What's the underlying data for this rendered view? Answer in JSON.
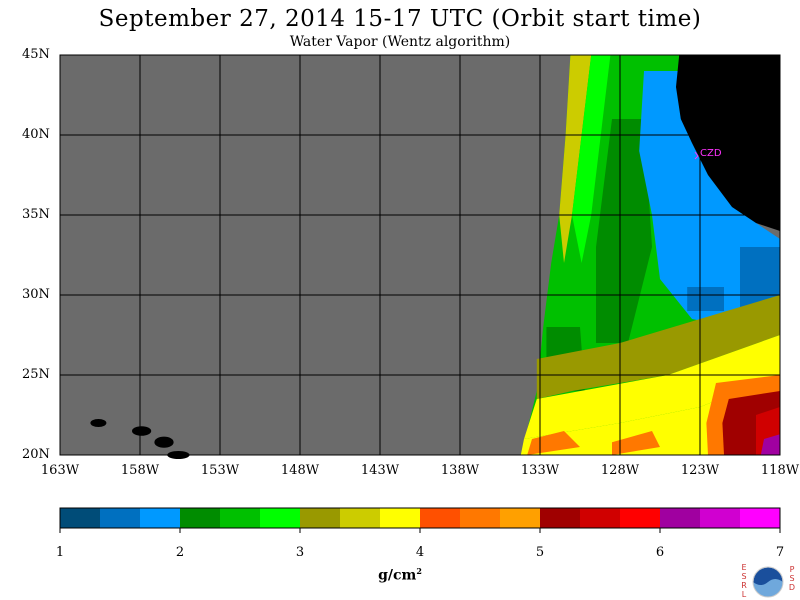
{
  "title": "September 27, 2014   15-17 UTC  (Orbit start time)",
  "subtitle": "Water Vapor (Wentz algorithm)",
  "map": {
    "lon_range": [
      -163,
      -118
    ],
    "lat_range": [
      20,
      45
    ],
    "lat_ticks": [
      "45N",
      "40N",
      "35N",
      "30N",
      "25N",
      "20N"
    ],
    "lon_ticks": [
      "163W",
      "158W",
      "153W",
      "148W",
      "143W",
      "138W",
      "133W",
      "128W",
      "123W",
      "118W"
    ],
    "station_label": "CZD",
    "no_data_color": "#6b6b6b",
    "land_color": "#000000",
    "marker_color": "#ff33ff"
  },
  "colorbar": {
    "unit_base": "g/cm",
    "unit_exp": "2",
    "ticks": [
      "1",
      "2",
      "3",
      "4",
      "5",
      "6",
      "7"
    ],
    "colors": [
      "#004c78",
      "#0070c0",
      "#0099ff",
      "#008c00",
      "#00c000",
      "#00ff00",
      "#999900",
      "#cccc00",
      "#ffff00",
      "#ff5000",
      "#ff7800",
      "#ffa000",
      "#a00000",
      "#d00000",
      "#ff0000",
      "#a000a0",
      "#d000d0",
      "#ff00ff"
    ]
  },
  "logo": {
    "left_letters": [
      "E",
      "S",
      "R",
      "L"
    ],
    "right_letters": [
      "P",
      "S",
      "D"
    ]
  }
}
